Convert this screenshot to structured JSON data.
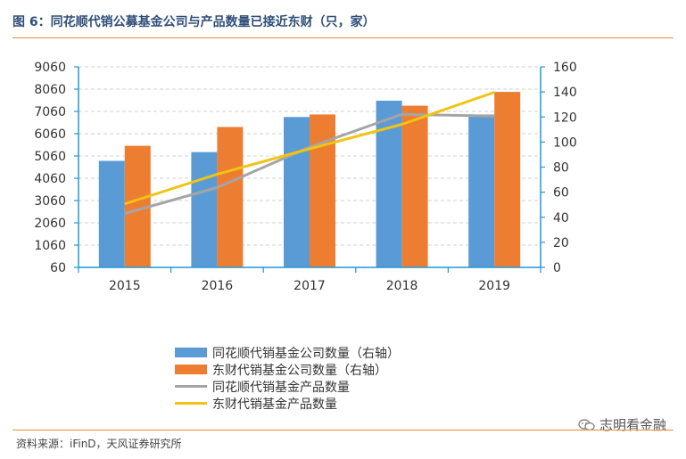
{
  "figure": {
    "title": "图 6：同花顺代销公募基金公司与产品数量已接近东财（只，家）",
    "source": "资料来源：iFinD，天风证券研究所",
    "watermark": "志明看金融",
    "watermark_icon": "wechat-icon"
  },
  "chart_data": {
    "type": "bar",
    "categories": [
      "2015",
      "2016",
      "2017",
      "2018",
      "2019"
    ],
    "left_axis": {
      "ticks": [
        "60",
        "1060",
        "2060",
        "3060",
        "4060",
        "5060",
        "6060",
        "7060",
        "8060",
        "9060"
      ],
      "min": 60,
      "max": 9060
    },
    "right_axis": {
      "ticks": [
        "0",
        "20",
        "40",
        "60",
        "80",
        "100",
        "120",
        "140",
        "160"
      ],
      "min": 0,
      "max": 160
    },
    "grid": true,
    "legend_position": "bottom",
    "series": [
      {
        "name": "同花顺代销基金公司数量（右轴）",
        "kind": "bar",
        "axis": "right",
        "color": "#5b9bd5",
        "values": [
          85,
          92,
          120,
          133,
          122
        ]
      },
      {
        "name": "东财代销基金公司数量（右轴）",
        "kind": "bar",
        "axis": "right",
        "color": "#ed7d31",
        "values": [
          97,
          112,
          122,
          129,
          140
        ]
      },
      {
        "name": "同花顺代销基金产品数量",
        "kind": "line",
        "axis": "left",
        "color": "#a5a5a5",
        "values": [
          2480,
          3640,
          5460,
          6930,
          6850
        ]
      },
      {
        "name": "东财代销基金产品数量",
        "kind": "line",
        "axis": "left",
        "color": "#f2c314",
        "values": [
          2910,
          4240,
          5380,
          6480,
          7920
        ]
      }
    ]
  }
}
